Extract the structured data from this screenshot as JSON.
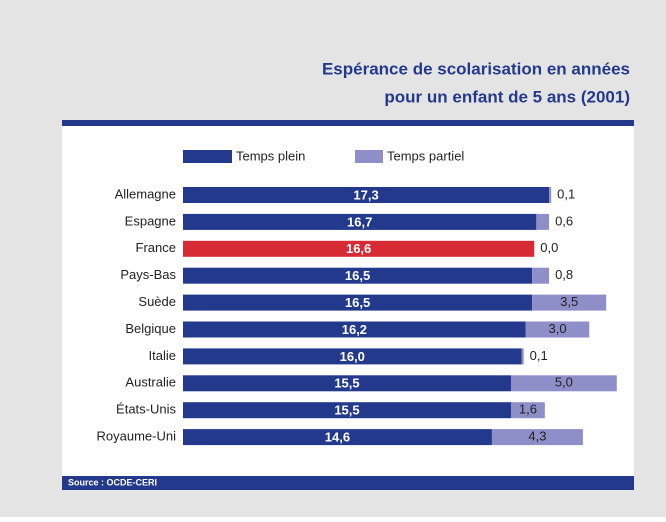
{
  "chart_data": {
    "type": "bar",
    "orientation": "horizontal",
    "stacked": true,
    "title": "Espérance de scolarisation en années",
    "subtitle": "pour un enfant de 5 ans (2001)",
    "source": "Source : OCDE-CERI",
    "categories": [
      "Allemagne",
      "Espagne",
      "France",
      "Pays-Bas",
      "Suède",
      "Belgique",
      "Italie",
      "Australie",
      "États-Unis",
      "Royaume-Uni"
    ],
    "series": [
      {
        "name": "Temps plein",
        "color": "#233a8c",
        "colors": [
          "#233a8c",
          "#233a8c",
          "#d62b35",
          "#233a8c",
          "#233a8c",
          "#233a8c",
          "#233a8c",
          "#233a8c",
          "#233a8c",
          "#233a8c"
        ],
        "values": [
          17.3,
          16.7,
          16.6,
          16.5,
          16.5,
          16.2,
          16.0,
          15.5,
          15.5,
          14.6
        ],
        "value_labels": [
          "17,3",
          "16,7",
          "16,6",
          "16,5",
          "16,5",
          "16,2",
          "16,0",
          "15,5",
          "15,5",
          "14,6"
        ]
      },
      {
        "name": "Temps partiel",
        "color": "#8e8ec8",
        "values": [
          0.1,
          0.6,
          0.0,
          0.8,
          3.5,
          3.0,
          0.1,
          5.0,
          1.6,
          4.3
        ],
        "value_labels": [
          "0,1",
          "0,6",
          "0,0",
          "0,8",
          "3,5",
          "3,0",
          "0,1",
          "5,0",
          "1,6",
          "4,3"
        ]
      }
    ]
  }
}
